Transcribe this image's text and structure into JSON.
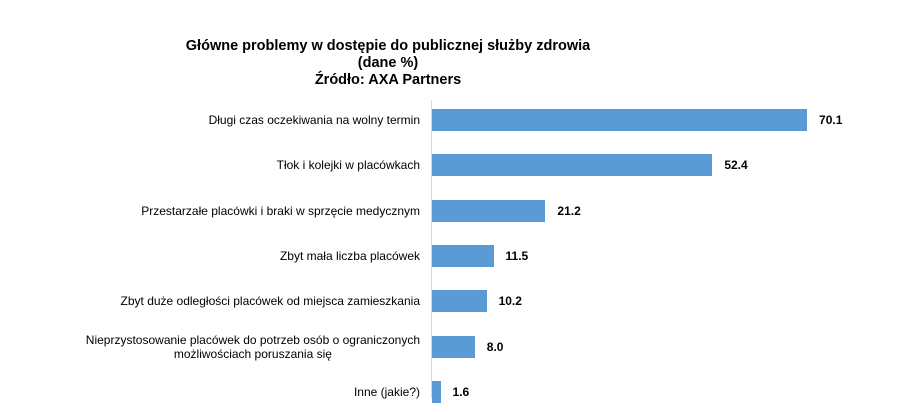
{
  "chart_data": {
    "type": "bar",
    "orientation": "horizontal",
    "title": "Główne problemy w dostępie do publicznej służby zdrowia",
    "subtitle": "(dane %)",
    "source": "Źródło: AXA Partners",
    "xlabel": "",
    "ylabel": "",
    "categories": [
      "Długi czas oczekiwania na wolny termin",
      "Tłok i kolejki w placówkach",
      "Przestarzałe placówki i braki w sprzęcie medycznym",
      "Zbyt mała liczba placówek",
      "Zbyt duże odległości placówek od miejsca zamieszkania",
      "Nieprzystosowanie placówek do potrzeb osób o ograniczonych możliwościach poruszania się",
      "Inne (jakie?)"
    ],
    "values": [
      70.1,
      52.4,
      21.2,
      11.5,
      10.2,
      8.0,
      1.6
    ],
    "value_labels": [
      "70.1",
      "52.4",
      "21.2",
      "11.5",
      "10.2",
      "8.0",
      "1.6"
    ],
    "xlim": [
      0,
      80
    ],
    "grid": false,
    "legend": "none",
    "bar_color": "#5b9bd5"
  },
  "title": {
    "line1": "Główne problemy w dostępie do publicznej służby zdrowia",
    "line2": "(dane %)",
    "line3": "Źródło: AXA Partners"
  },
  "rows": [
    {
      "label_lines": [
        "Długi czas oczekiwania na wolny termin"
      ],
      "value": "70.1"
    },
    {
      "label_lines": [
        "Tłok i kolejki w placówkach"
      ],
      "value": "52.4"
    },
    {
      "label_lines": [
        "Przestarzałe placówki i braki w sprzęcie medycznym"
      ],
      "value": "21.2"
    },
    {
      "label_lines": [
        "Zbyt mała liczba placówek"
      ],
      "value": "11.5"
    },
    {
      "label_lines": [
        "Zbyt duże odległości placówek od miejsca zamieszkania"
      ],
      "value": "10.2"
    },
    {
      "label_lines": [
        "Nieprzystosowanie placówek do potrzeb osób o ograniczonych",
        "możliwościach poruszania się"
      ],
      "value": "8.0"
    },
    {
      "label_lines": [
        "Inne (jakie?)"
      ],
      "value": "1.6"
    }
  ]
}
